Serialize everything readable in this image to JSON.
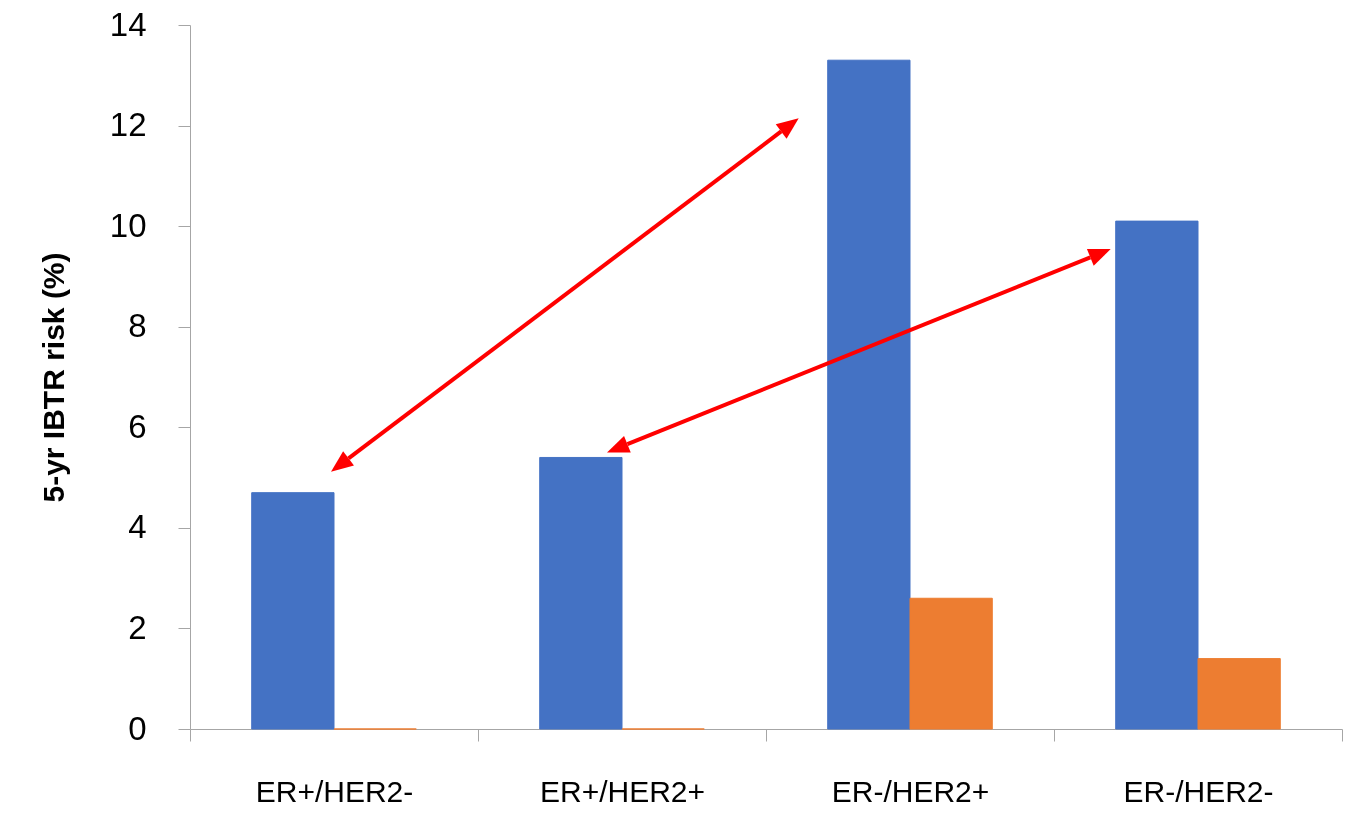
{
  "chart_data": {
    "type": "bar",
    "ylabel": "5-yr IBTR risk (%)",
    "categories": [
      "ER+/HER2-",
      "ER+/HER2+",
      "ER-/HER2+",
      "ER-/HER2-"
    ],
    "series": [
      {
        "color": "#4472c4",
        "values": [
          4.7,
          5.4,
          13.3,
          10.1
        ]
      },
      {
        "color": "#ed7d31",
        "values": [
          0,
          0,
          2.6,
          1.4
        ]
      }
    ],
    "ylim": [
      0,
      14
    ],
    "yticks": [
      0,
      2,
      4,
      6,
      8,
      10,
      12,
      14
    ]
  }
}
